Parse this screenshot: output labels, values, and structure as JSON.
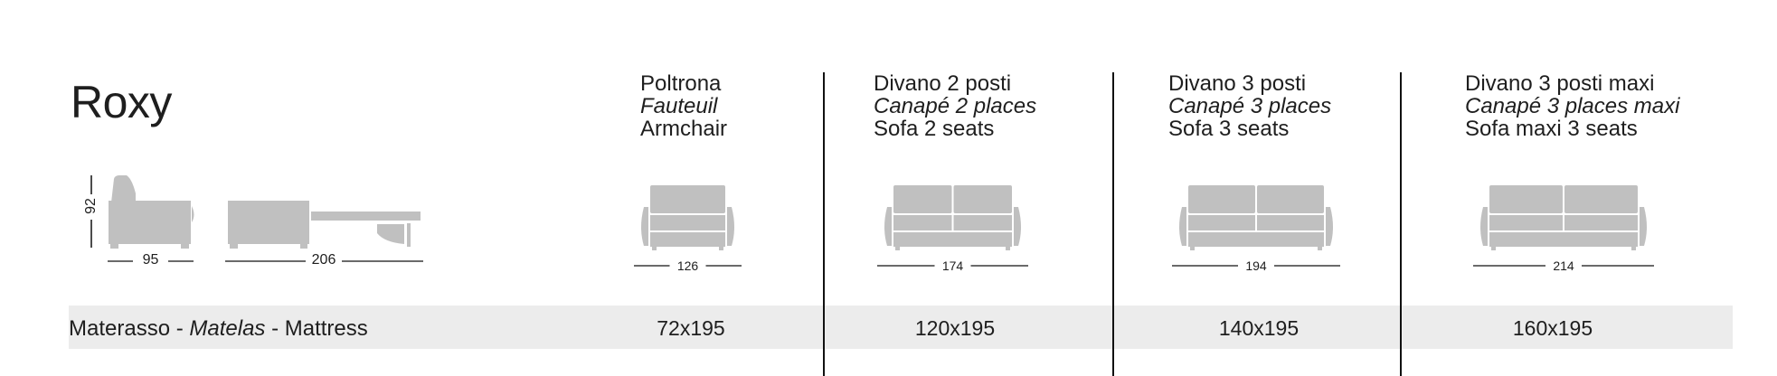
{
  "title": "Roxy",
  "side_view": {
    "height": "92",
    "depth": "95",
    "open_depth": "206"
  },
  "columns": [
    {
      "it": "Poltrona",
      "fr": "Fauteuil",
      "en": "Armchair",
      "width": "126",
      "mattress": "72x195",
      "seats": 1
    },
    {
      "it": "Divano 2 posti",
      "fr": "Canapé 2 places",
      "en": "Sofa 2 seats",
      "width": "174",
      "mattress": "120x195",
      "seats": 2
    },
    {
      "it": "Divano 3 posti",
      "fr": "Canapé 3 places",
      "en": "Sofa 3 seats",
      "width": "194",
      "mattress": "140x195",
      "seats": 2
    },
    {
      "it": "Divano 3 posti maxi",
      "fr": "Canapé 3 places maxi",
      "en": "Sofa maxi 3 seats",
      "width": "214",
      "mattress": "160x195",
      "seats": 2
    }
  ],
  "mattress_row": {
    "it": "Materasso - ",
    "fr": "Matelas",
    "en": " - Mattress"
  },
  "colors": {
    "icon_fill": "#c0c0c0",
    "band": "#ececec",
    "text": "#1e1e1e"
  }
}
